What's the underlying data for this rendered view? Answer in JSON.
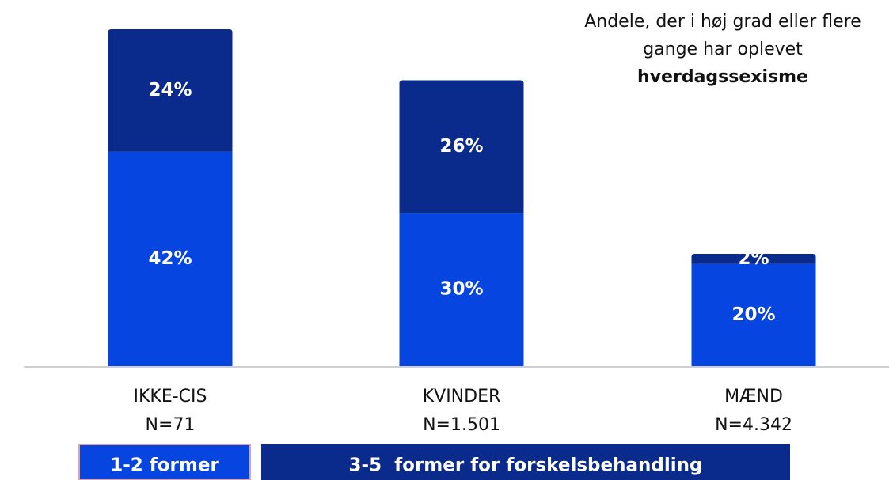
{
  "chart_data": {
    "type": "stacked_bar",
    "title_lines": [
      "Andele, der i høj grad eller flere",
      "gange har oplevet"
    ],
    "title_emphasis": "hverdagssexisme",
    "categories": [
      "IKKE-CIS",
      "KVINDER",
      "MÆND"
    ],
    "sample_sizes": [
      "N=71",
      "N=1.501",
      "N=4.342"
    ],
    "series": [
      {
        "name": "1-2 former",
        "color": "#0645e0",
        "values": [
          42,
          30,
          20
        ],
        "value_labels": [
          "42%",
          "30%",
          "20%"
        ]
      },
      {
        "name": "3-5  former for forskelsbehandling",
        "color": "#0b2b8c",
        "values": [
          24,
          26,
          2
        ],
        "value_labels": [
          "24%",
          "26%",
          "2%"
        ]
      }
    ]
  }
}
